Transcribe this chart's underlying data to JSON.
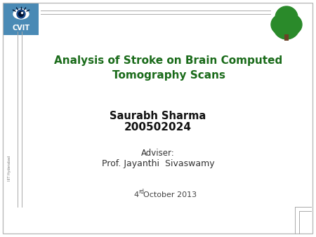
{
  "title_line1": "Analysis of Stroke on Brain Computed",
  "title_line2": "Tomography Scans",
  "author_name": "Saurabh Sharma",
  "author_id": "200502024",
  "adviser_label": "Adviser:",
  "adviser_name": "Prof. Jayanthi  Sivaswamy",
  "date_main": "4",
  "date_sup": "rd",
  "date_rest": "October 2013",
  "title_color": "#1a6b1a",
  "bg_color": "#ffffff",
  "border_color": "#bbbbbb",
  "line_color": "#aaaaaa",
  "cvit_box_color": "#4a8ab5",
  "tree_color": "#2a8a2a",
  "side_text": "IIIT Hyderabad",
  "side_text_color": "#777777"
}
